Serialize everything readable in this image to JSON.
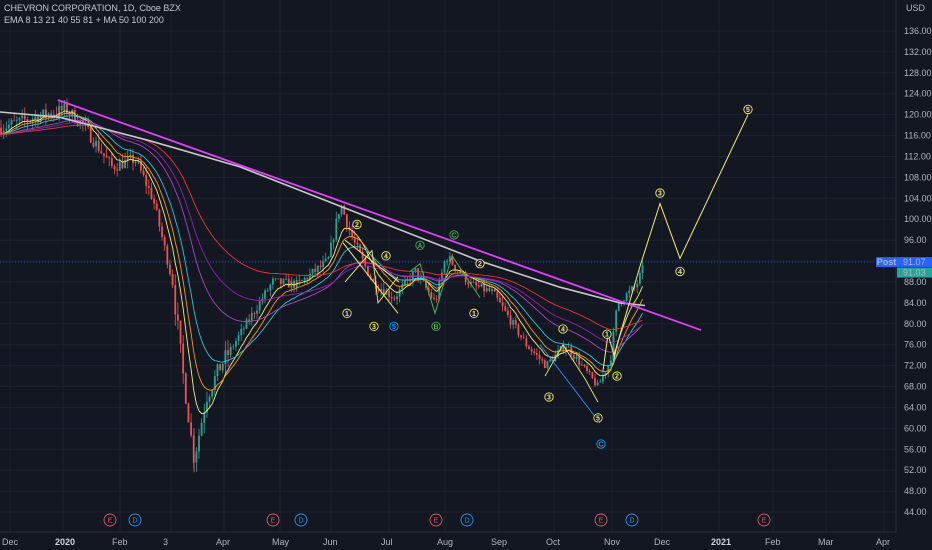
{
  "header": {
    "symbol_line": "CHEVRON CORPORATION, 1D, Cboe BZX",
    "indicators_line": "EMA 8 13 21 40 55 81 + MA 50 100 200"
  },
  "price_axis": {
    "currency": "USD",
    "ticks": [
      "44.00",
      "48.00",
      "52.00",
      "56.00",
      "60.00",
      "64.00",
      "68.00",
      "72.00",
      "76.00",
      "80.00",
      "84.00",
      "88.00",
      "92.00",
      "96.00",
      "100.00",
      "104.00",
      "108.00",
      "112.00",
      "116.00",
      "120.00",
      "124.00",
      "128.00",
      "132.00",
      "136.00"
    ],
    "post_label": "Post",
    "post_price": "91.07",
    "last_price": "91.03"
  },
  "time_axis": {
    "labels": [
      {
        "text": "Dec",
        "bold": false
      },
      {
        "text": "2020",
        "bold": true
      },
      {
        "text": "Feb",
        "bold": false
      },
      {
        "text": "3",
        "bold": false
      },
      {
        "text": "Apr",
        "bold": false
      },
      {
        "text": "May",
        "bold": false
      },
      {
        "text": "Jun",
        "bold": false
      },
      {
        "text": "Jul",
        "bold": false
      },
      {
        "text": "Aug",
        "bold": false
      },
      {
        "text": "Sep",
        "bold": false
      },
      {
        "text": "Oct",
        "bold": false
      },
      {
        "text": "Nov",
        "bold": false
      },
      {
        "text": "Dec",
        "bold": false
      },
      {
        "text": "2021",
        "bold": true
      },
      {
        "text": "Feb",
        "bold": false
      },
      {
        "text": "Mar",
        "bold": false
      },
      {
        "text": "Apr",
        "bold": false
      }
    ]
  },
  "events": [
    {
      "kind": "E"
    },
    {
      "kind": "D"
    },
    {
      "kind": "E"
    },
    {
      "kind": "D"
    },
    {
      "kind": "E"
    },
    {
      "kind": "D"
    },
    {
      "kind": "E"
    },
    {
      "kind": "D"
    },
    {
      "kind": "E"
    }
  ],
  "colors": {
    "background": "#131722",
    "up": "#26a69a",
    "down": "#ef5350",
    "trendline": "#e040fb",
    "ma200": "#c8c8c8",
    "wave_yellow": "#f5f069",
    "wave_green": "#4caf50",
    "wave_blue": "#2196f3",
    "earnings": "#e05a6a",
    "dividend": "#2196f3",
    "post_badge": "#2962ff"
  },
  "chart_data": {
    "type": "candlestick",
    "title": "CHEVRON CORPORATION, 1D, Cboe BZX",
    "ylabel": "USD",
    "ylim": [
      42,
      140
    ],
    "grid": true,
    "key_points": {
      "jan_2020_high": 122.5,
      "march_2020_low": 51.6,
      "june_2020_high": 103.6,
      "oct_2020_low": 65.2,
      "last_close": 91.03,
      "post_market": 91.07
    },
    "close_path": [
      {
        "date": "2019-12-01",
        "close": 117.5
      },
      {
        "date": "2019-12-20",
        "close": 119.5
      },
      {
        "date": "2020-01-06",
        "close": 121.0
      },
      {
        "date": "2020-01-15",
        "close": 118.5
      },
      {
        "date": "2020-02-01",
        "close": 110.0
      },
      {
        "date": "2020-02-14",
        "close": 111.5
      },
      {
        "date": "2020-02-24",
        "close": 104.0
      },
      {
        "date": "2020-03-06",
        "close": 88.0
      },
      {
        "date": "2020-03-12",
        "close": 70.0
      },
      {
        "date": "2020-03-18",
        "close": 54.0
      },
      {
        "date": "2020-03-25",
        "close": 66.0
      },
      {
        "date": "2020-04-02",
        "close": 72.0
      },
      {
        "date": "2020-04-20",
        "close": 82.0
      },
      {
        "date": "2020-05-01",
        "close": 88.0
      },
      {
        "date": "2020-05-15",
        "close": 87.5
      },
      {
        "date": "2020-06-01",
        "close": 92.0
      },
      {
        "date": "2020-06-08",
        "close": 103.0
      },
      {
        "date": "2020-06-15",
        "close": 96.0
      },
      {
        "date": "2020-06-26",
        "close": 88.0
      },
      {
        "date": "2020-07-08",
        "close": 85.0
      },
      {
        "date": "2020-07-20",
        "close": 90.0
      },
      {
        "date": "2020-07-31",
        "close": 84.0
      },
      {
        "date": "2020-08-06",
        "close": 93.0
      },
      {
        "date": "2020-08-20",
        "close": 87.5
      },
      {
        "date": "2020-09-01",
        "close": 86.0
      },
      {
        "date": "2020-09-20",
        "close": 76.0
      },
      {
        "date": "2020-10-01",
        "close": 72.0
      },
      {
        "date": "2020-10-12",
        "close": 76.0
      },
      {
        "date": "2020-10-30",
        "close": 68.0
      },
      {
        "date": "2020-11-06",
        "close": 73.0
      },
      {
        "date": "2020-11-10",
        "close": 84.0
      },
      {
        "date": "2020-11-20",
        "close": 87.0
      },
      {
        "date": "2020-11-25",
        "close": 91.03
      }
    ],
    "series": [
      {
        "name": "MA 200",
        "style": "line",
        "color": "#c8c8c8"
      },
      {
        "name": "Trendline",
        "style": "line",
        "color": "#e040fb",
        "points": [
          {
            "date": "2020-01-03",
            "price": 122.5
          },
          {
            "date": "2020-12-31",
            "price": 79.0
          }
        ]
      }
    ],
    "elliott_waves": [
      {
        "label": "1",
        "color": "yellow"
      },
      {
        "label": "2",
        "color": "yellow"
      },
      {
        "label": "3",
        "color": "yellow"
      },
      {
        "label": "4",
        "color": "yellow"
      },
      {
        "label": "5",
        "color": "blue"
      },
      {
        "label": "A",
        "color": "green"
      },
      {
        "label": "B",
        "color": "green"
      },
      {
        "label": "C",
        "color": "green"
      },
      {
        "label": "1",
        "color": "yellow"
      },
      {
        "label": "2",
        "color": "yellow"
      },
      {
        "label": "3",
        "color": "yellow"
      },
      {
        "label": "4",
        "color": "yellow"
      },
      {
        "label": "5",
        "color": "yellow"
      },
      {
        "label": "C",
        "color": "blue"
      },
      {
        "label": "1",
        "color": "yellow"
      },
      {
        "label": "2",
        "color": "yellow"
      },
      {
        "label": "3",
        "color": "yellow"
      },
      {
        "label": "4",
        "color": "yellow"
      },
      {
        "label": "5",
        "color": "yellow"
      }
    ]
  }
}
